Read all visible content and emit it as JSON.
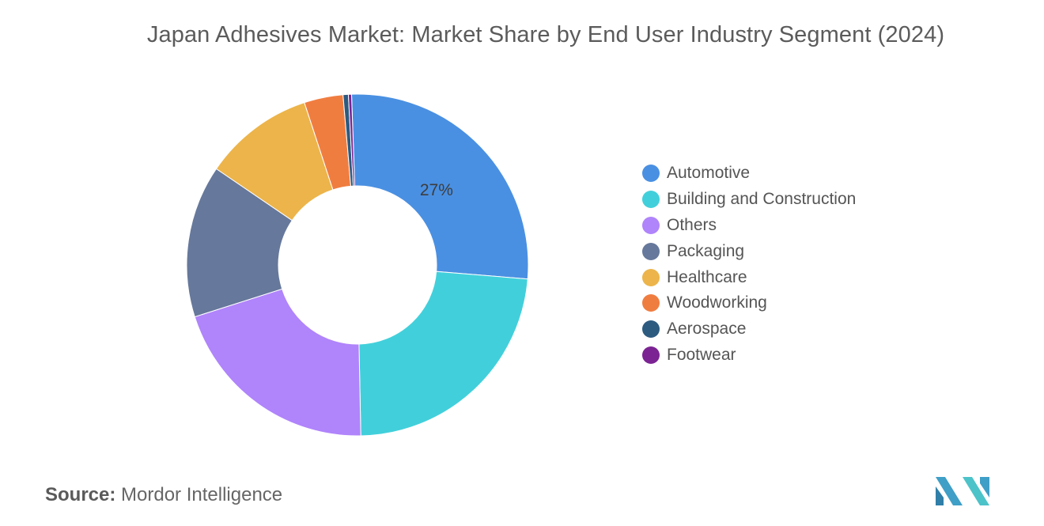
{
  "chart_data": {
    "type": "pie",
    "style": "donut",
    "title": "Japan Adhesives Market: Market Share by End User Industry Segment (2024)",
    "unit": "%",
    "legend_position": "right",
    "slices": [
      {
        "label": "Automotive",
        "value": 27,
        "color": "#4a90e2",
        "show_label": true
      },
      {
        "label": "Building and Construction",
        "value": 23.5,
        "color": "#41d0db",
        "show_label": false
      },
      {
        "label": "Others",
        "value": 20.5,
        "color": "#b084fb",
        "show_label": false
      },
      {
        "label": "Packaging",
        "value": 14.5,
        "color": "#66789b",
        "show_label": false
      },
      {
        "label": "Healthcare",
        "value": 10.5,
        "color": "#ecb44a",
        "show_label": false
      },
      {
        "label": "Woodworking",
        "value": 3.7,
        "color": "#f07d40",
        "show_label": false
      },
      {
        "label": "Aerospace",
        "value": 0.5,
        "color": "#2d5b80",
        "show_label": false
      },
      {
        "label": "Footwear",
        "value": 0.3,
        "color": "#7b2393",
        "show_label": false
      }
    ]
  },
  "source": {
    "label": "Source:",
    "text": "Mordor Intelligence"
  },
  "logo": {
    "name": "mordor-intelligence-logo",
    "color": "#3f9fc6"
  }
}
